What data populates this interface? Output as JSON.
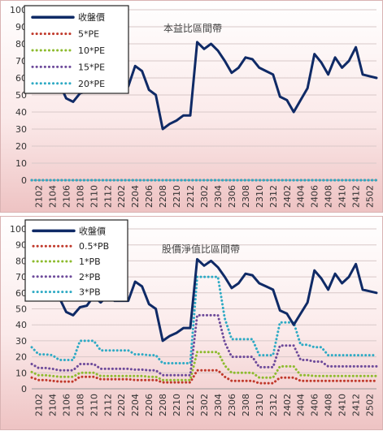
{
  "chart_data": [
    {
      "type": "line",
      "title": "本益比區間帶",
      "ylim": [
        0,
        100
      ],
      "yticks": [
        0,
        10,
        20,
        30,
        40,
        50,
        60,
        70,
        80,
        90,
        100
      ],
      "x": [
        "2101",
        "2102",
        "2103",
        "2104",
        "2105",
        "2106",
        "2107",
        "2108",
        "2109",
        "2110",
        "2111",
        "2112",
        "2201",
        "2202",
        "2203",
        "2204",
        "2205",
        "2206",
        "2207",
        "2208",
        "2209",
        "2210",
        "2211",
        "2212",
        "2301",
        "2302",
        "2303",
        "2304",
        "2305",
        "2306",
        "2307",
        "2308",
        "2309",
        "2310",
        "2311",
        "2312",
        "2401",
        "2402",
        "2403",
        "2404",
        "2405",
        "2406",
        "2407",
        "2408",
        "2409",
        "2410",
        "2411",
        "2412",
        "2501",
        "2502",
        "2503"
      ],
      "xtick_labels": [
        "2102",
        "2104",
        "2106",
        "2108",
        "2110",
        "2112",
        "2202",
        "2204",
        "2206",
        "2208",
        "2210",
        "2212",
        "2302",
        "2304",
        "2306",
        "2308",
        "2310",
        "2312",
        "2402",
        "2404",
        "2406",
        "2408",
        "2410",
        "2412",
        "2502"
      ],
      "legend": "top-left",
      "grid": "horizontal",
      "series": [
        {
          "name": "收盤價",
          "color": "#0f2a66",
          "style": "solid",
          "values": [
            60,
            62,
            60,
            59,
            57,
            48,
            46,
            51,
            52,
            58,
            54,
            58,
            55,
            55,
            55,
            67,
            64,
            53,
            50,
            30,
            33,
            35,
            38,
            38,
            81,
            77,
            80,
            76,
            70,
            63,
            66,
            72,
            71,
            66,
            64,
            62,
            49,
            47,
            40,
            47,
            54,
            74,
            69,
            62,
            72,
            66,
            70,
            78,
            62,
            61,
            60
          ]
        },
        {
          "name": "5*PE",
          "color": "#c0392b",
          "style": "dotted",
          "values": [
            0,
            0,
            0,
            0,
            0,
            0,
            0,
            0,
            0,
            0,
            0,
            0,
            0,
            0,
            0,
            0,
            0,
            0,
            0,
            0,
            0,
            0,
            0,
            0,
            0,
            0,
            0,
            0,
            0,
            0,
            0,
            0,
            0,
            0,
            0,
            0,
            0,
            0,
            0,
            0,
            0,
            0,
            0,
            0,
            0,
            0,
            0,
            0,
            0,
            0,
            0
          ]
        },
        {
          "name": "10*PE",
          "color": "#8dbb2e",
          "style": "dotted",
          "values": [
            0,
            0,
            0,
            0,
            0,
            0,
            0,
            0,
            0,
            0,
            0,
            0,
            0,
            0,
            0,
            0,
            0,
            0,
            0,
            0,
            0,
            0,
            0,
            0,
            0,
            0,
            0,
            0,
            0,
            0,
            0,
            0,
            0,
            0,
            0,
            0,
            0,
            0,
            0,
            0,
            0,
            0,
            0,
            0,
            0,
            0,
            0,
            0,
            0,
            0,
            0
          ]
        },
        {
          "name": "15*PE",
          "color": "#6d4a9a",
          "style": "dotted",
          "values": [
            0,
            0,
            0,
            0,
            0,
            0,
            0,
            0,
            0,
            0,
            0,
            0,
            0,
            0,
            0,
            0,
            0,
            0,
            0,
            0,
            0,
            0,
            0,
            0,
            0,
            0,
            0,
            0,
            0,
            0,
            0,
            0,
            0,
            0,
            0,
            0,
            0,
            0,
            0,
            0,
            0,
            0,
            0,
            0,
            0,
            0,
            0,
            0,
            0,
            0,
            0
          ]
        },
        {
          "name": "20*PE",
          "color": "#2eaac4",
          "style": "dotted",
          "values": [
            0,
            0,
            0,
            0,
            0,
            0,
            0,
            0,
            0,
            0,
            0,
            0,
            0,
            0,
            0,
            0,
            0,
            0,
            0,
            0,
            0,
            0,
            0,
            0,
            0,
            0,
            0,
            0,
            0,
            0,
            0,
            0,
            0,
            0,
            0,
            0,
            0,
            0,
            0,
            0,
            0,
            0,
            0,
            0,
            0,
            0,
            0,
            0,
            0,
            0,
            0
          ]
        }
      ]
    },
    {
      "type": "line",
      "title": "股價淨值比區間帶",
      "ylim": [
        0,
        100
      ],
      "yticks": [
        0,
        10,
        20,
        30,
        40,
        50,
        60,
        70,
        80,
        90,
        100
      ],
      "x": [
        "2101",
        "2102",
        "2103",
        "2104",
        "2105",
        "2106",
        "2107",
        "2108",
        "2109",
        "2110",
        "2111",
        "2112",
        "2201",
        "2202",
        "2203",
        "2204",
        "2205",
        "2206",
        "2207",
        "2208",
        "2209",
        "2210",
        "2211",
        "2212",
        "2301",
        "2302",
        "2303",
        "2304",
        "2305",
        "2306",
        "2307",
        "2308",
        "2309",
        "2310",
        "2311",
        "2312",
        "2401",
        "2402",
        "2403",
        "2404",
        "2405",
        "2406",
        "2407",
        "2408",
        "2409",
        "2410",
        "2411",
        "2412",
        "2501",
        "2502",
        "2503"
      ],
      "xtick_labels": [
        "2102",
        "2104",
        "2106",
        "2108",
        "2110",
        "2112",
        "2202",
        "2204",
        "2206",
        "2208",
        "2210",
        "2212",
        "2302",
        "2304",
        "2306",
        "2308",
        "2310",
        "2312",
        "2402",
        "2404",
        "2406",
        "2408",
        "2410",
        "2412",
        "2502"
      ],
      "legend": "top-left",
      "grid": "horizontal",
      "series": [
        {
          "name": "收盤價",
          "color": "#0f2a66",
          "style": "solid",
          "values": [
            60,
            62,
            60,
            59,
            57,
            48,
            46,
            51,
            52,
            58,
            54,
            58,
            55,
            55,
            55,
            67,
            64,
            53,
            50,
            30,
            33,
            35,
            38,
            38,
            81,
            77,
            80,
            76,
            70,
            63,
            66,
            72,
            71,
            66,
            64,
            62,
            49,
            47,
            40,
            47,
            54,
            74,
            69,
            62,
            72,
            66,
            70,
            78,
            62,
            61,
            60
          ]
        },
        {
          "name": "0.5*PB",
          "color": "#c0392b",
          "style": "dotted",
          "values": [
            7,
            5.5,
            5.5,
            5,
            4.5,
            4.5,
            4.5,
            7.5,
            7.5,
            7.5,
            6,
            6,
            6,
            6,
            6,
            5.5,
            5.5,
            5.5,
            5.5,
            4,
            4,
            4,
            4,
            4,
            11.5,
            11.5,
            11.5,
            11.5,
            7.5,
            5,
            5,
            5,
            5,
            3.5,
            3.5,
            3.5,
            7,
            7,
            7,
            5,
            5,
            5,
            5,
            5,
            5,
            5,
            5,
            5,
            5,
            5,
            5
          ]
        },
        {
          "name": "1*PB",
          "color": "#8dbb2e",
          "style": "dotted",
          "values": [
            10.5,
            8.5,
            8.5,
            8,
            7.5,
            7.5,
            7.5,
            10,
            10,
            10,
            8,
            8,
            8,
            8,
            8,
            8,
            8,
            7.5,
            7.5,
            5.5,
            5.5,
            5.5,
            5.5,
            5.5,
            23,
            23,
            23,
            23,
            14.5,
            10,
            10,
            10,
            10,
            7,
            7,
            7,
            14,
            14,
            14,
            8.5,
            8.5,
            8,
            8,
            8,
            8,
            8,
            8,
            8,
            8,
            8,
            8
          ]
        },
        {
          "name": "2*PB",
          "color": "#6d4a9a",
          "style": "dotted",
          "values": [
            15.5,
            13,
            13,
            12.5,
            11.5,
            11.5,
            11.5,
            15.5,
            15.5,
            15.5,
            12.5,
            12.5,
            12.5,
            12.5,
            12.5,
            12,
            12,
            11.5,
            11.5,
            8.5,
            8.5,
            8.5,
            8.5,
            8.5,
            46,
            46,
            46,
            46,
            29,
            20,
            20,
            20,
            20,
            13.5,
            13.5,
            13.5,
            27,
            27,
            27,
            18,
            18,
            17,
            17,
            14,
            14,
            14,
            14,
            14,
            14,
            14,
            14
          ]
        },
        {
          "name": "3*PB",
          "color": "#2eaac4",
          "style": "dotted",
          "values": [
            26,
            21.5,
            21.5,
            21,
            18,
            18,
            18,
            30,
            30,
            30,
            24,
            24,
            24,
            24,
            24,
            21.5,
            21.5,
            21,
            21,
            16,
            16,
            16,
            16,
            16,
            70,
            70,
            70,
            70,
            44,
            31,
            31,
            31,
            31,
            21,
            21,
            21,
            41.5,
            41.5,
            41.5,
            27.5,
            27.5,
            26,
            26,
            21,
            21,
            21,
            21,
            21,
            21,
            21,
            21
          ]
        }
      ]
    }
  ]
}
